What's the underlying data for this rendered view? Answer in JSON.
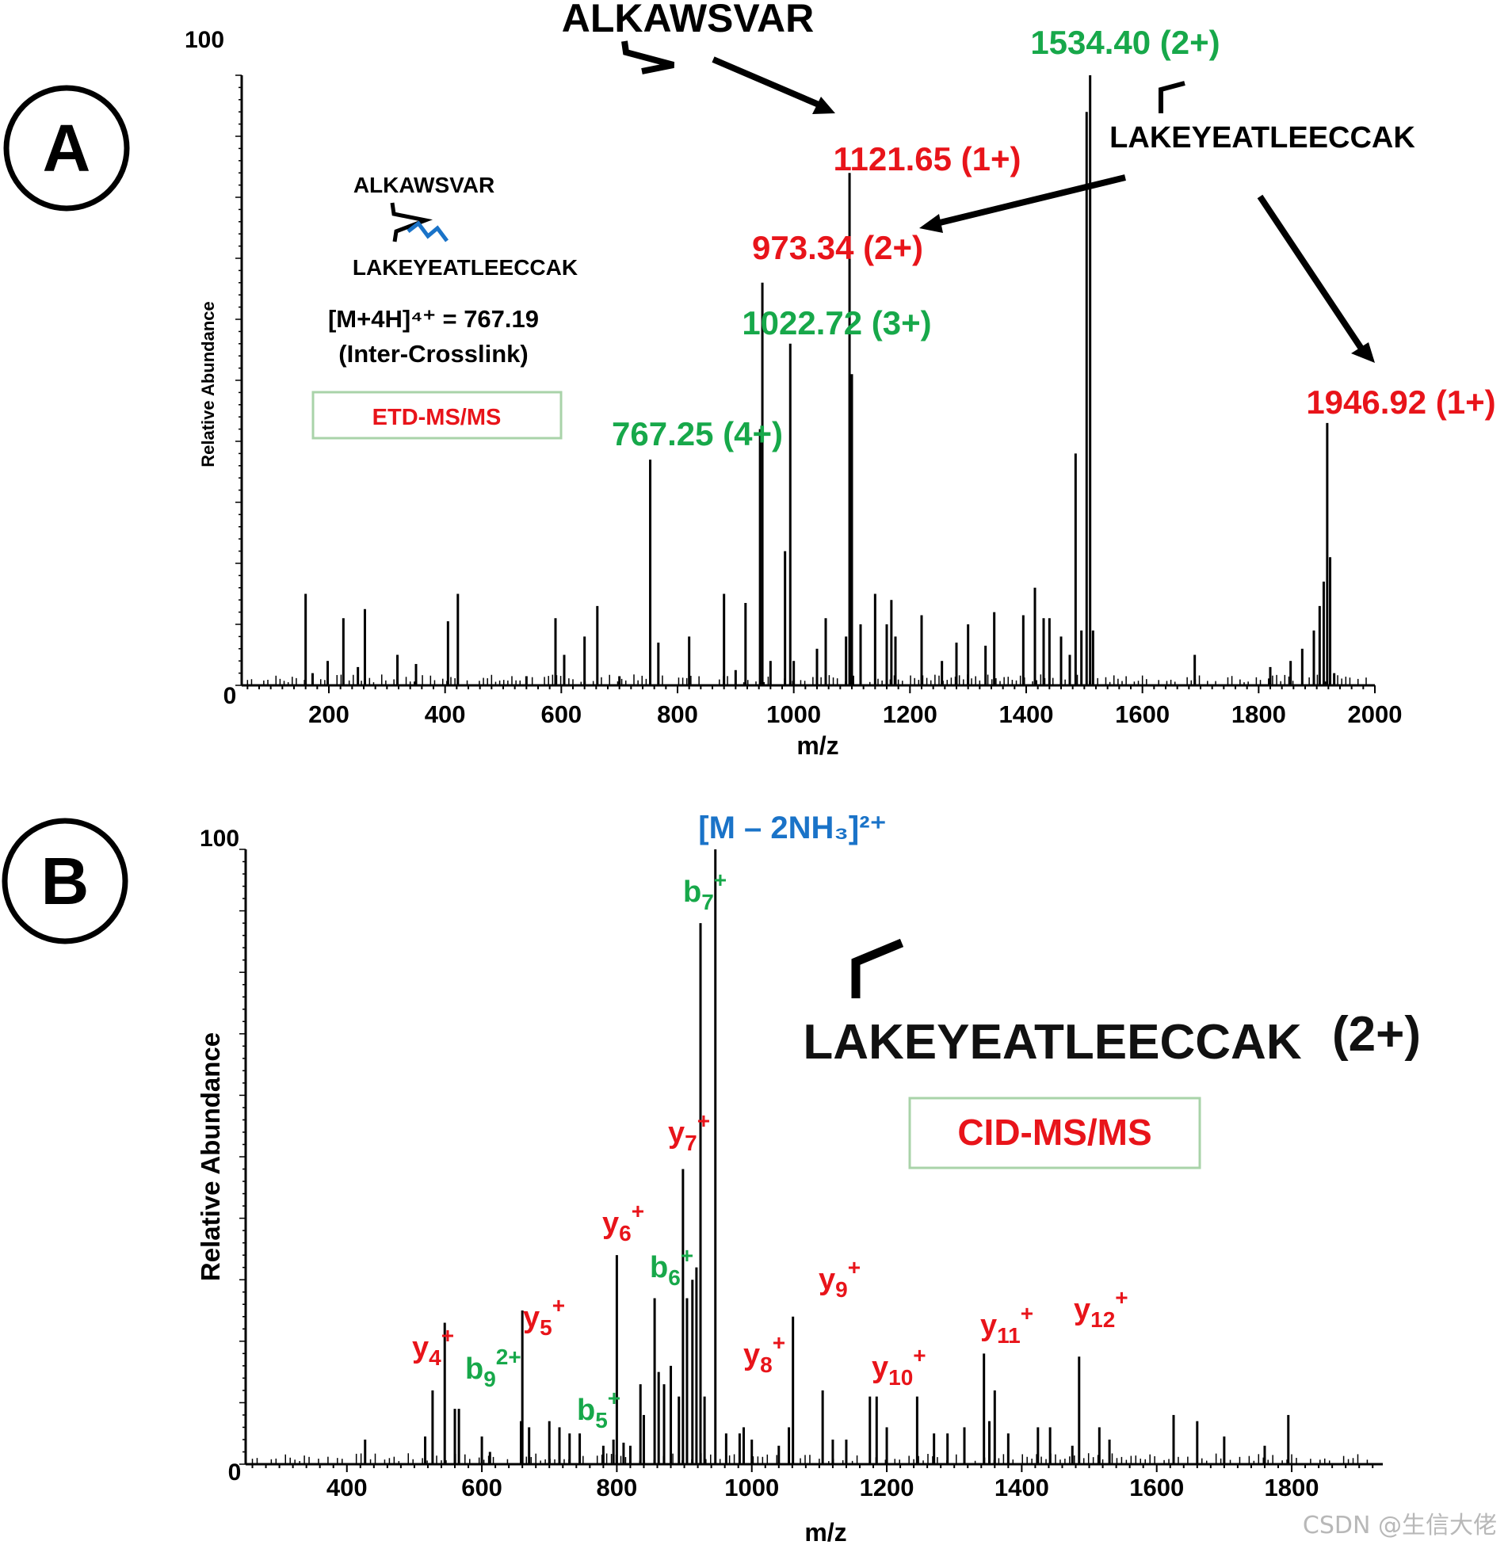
{
  "watermark": "CSDN @生信大佬",
  "colors": {
    "red": "#e8141a",
    "green": "#17a84a",
    "blue": "#1a73c8",
    "black": "#000000",
    "box_border": "#a9d3a9"
  },
  "chart_data": [
    {
      "panel_label": "A",
      "type": "bar",
      "subtype": "mass spectrum (stick plot)",
      "xlabel": "m/z",
      "ylabel": "Relative Abundance",
      "xlim": [
        50,
        2000
      ],
      "ylim": [
        0,
        100
      ],
      "x_ticks": [
        200,
        400,
        600,
        800,
        1000,
        1200,
        1400,
        1600,
        1800,
        2000
      ],
      "y_ticks": [
        0,
        100
      ],
      "method_box": "ETD-MS/MS",
      "precursor_line1": "[M+4H]⁴⁺ = 767.19",
      "precursor_line2": "(Inter-Crosslink)",
      "structure": {
        "peptide1": "ALKAWSVAR",
        "peptide2": "LAKEYEATLEECCAK"
      },
      "header_peptides": {
        "top": "ALKAWSVAR",
        "right": "LAKEYEATLEECCAK"
      },
      "peaks": [
        {
          "mz": 160,
          "ab": 15
        },
        {
          "mz": 172,
          "ab": 2
        },
        {
          "mz": 198,
          "ab": 4
        },
        {
          "mz": 225,
          "ab": 11
        },
        {
          "mz": 250,
          "ab": 3
        },
        {
          "mz": 262,
          "ab": 12.5
        },
        {
          "mz": 318,
          "ab": 5
        },
        {
          "mz": 350,
          "ab": 3.5
        },
        {
          "mz": 405,
          "ab": 10.5
        },
        {
          "mz": 422,
          "ab": 15
        },
        {
          "mz": 540,
          "ab": 1.5
        },
        {
          "mz": 590,
          "ab": 11
        },
        {
          "mz": 605,
          "ab": 5
        },
        {
          "mz": 640,
          "ab": 8
        },
        {
          "mz": 662,
          "ab": 13
        },
        {
          "mz": 700,
          "ab": 1.5
        },
        {
          "mz": 753,
          "ab": 37
        },
        {
          "mz": 767,
          "ab": 7
        },
        {
          "mz": 820,
          "ab": 8
        },
        {
          "mz": 880,
          "ab": 15
        },
        {
          "mz": 900,
          "ab": 2.5
        },
        {
          "mz": 917,
          "ab": 13.5
        },
        {
          "mz": 942,
          "ab": 42
        },
        {
          "mz": 946,
          "ab": 66
        },
        {
          "mz": 960,
          "ab": 4
        },
        {
          "mz": 985,
          "ab": 22
        },
        {
          "mz": 994,
          "ab": 56
        },
        {
          "mz": 1000,
          "ab": 4
        },
        {
          "mz": 1040,
          "ab": 6
        },
        {
          "mz": 1055,
          "ab": 11
        },
        {
          "mz": 1090,
          "ab": 8
        },
        {
          "mz": 1096,
          "ab": 84
        },
        {
          "mz": 1100,
          "ab": 51
        },
        {
          "mz": 1115,
          "ab": 10
        },
        {
          "mz": 1140,
          "ab": 15
        },
        {
          "mz": 1160,
          "ab": 10
        },
        {
          "mz": 1168,
          "ab": 14
        },
        {
          "mz": 1175,
          "ab": 8
        },
        {
          "mz": 1220,
          "ab": 11.5
        },
        {
          "mz": 1255,
          "ab": 4
        },
        {
          "mz": 1280,
          "ab": 7
        },
        {
          "mz": 1300,
          "ab": 10
        },
        {
          "mz": 1330,
          "ab": 6.5
        },
        {
          "mz": 1345,
          "ab": 12
        },
        {
          "mz": 1395,
          "ab": 11.5
        },
        {
          "mz": 1415,
          "ab": 16
        },
        {
          "mz": 1430,
          "ab": 11
        },
        {
          "mz": 1440,
          "ab": 11
        },
        {
          "mz": 1460,
          "ab": 8
        },
        {
          "mz": 1475,
          "ab": 5
        },
        {
          "mz": 1485,
          "ab": 38
        },
        {
          "mz": 1495,
          "ab": 9
        },
        {
          "mz": 1504,
          "ab": 94
        },
        {
          "mz": 1510,
          "ab": 100
        },
        {
          "mz": 1515,
          "ab": 9
        },
        {
          "mz": 1690,
          "ab": 5
        },
        {
          "mz": 1820,
          "ab": 3
        },
        {
          "mz": 1855,
          "ab": 4
        },
        {
          "mz": 1875,
          "ab": 6
        },
        {
          "mz": 1895,
          "ab": 9
        },
        {
          "mz": 1905,
          "ab": 13
        },
        {
          "mz": 1912,
          "ab": 17
        },
        {
          "mz": 1918,
          "ab": 43
        },
        {
          "mz": 1923,
          "ab": 21
        },
        {
          "mz": 1930,
          "ab": 2
        }
      ],
      "annotations": [
        {
          "text": "1534.40 (2+)",
          "color": "green"
        },
        {
          "text": "1121.65 (1+)",
          "color": "red"
        },
        {
          "text": "973.34 (2+)",
          "color": "red"
        },
        {
          "text": "1022.72 (3+)",
          "color": "green"
        },
        {
          "text": "767.25 (4+)",
          "color": "green"
        },
        {
          "text": "1946.92 (1+)",
          "color": "red"
        }
      ]
    },
    {
      "panel_label": "B",
      "type": "bar",
      "subtype": "mass spectrum (stick plot)",
      "xlabel": "m/z",
      "ylabel": "Relative Abundance",
      "xlim": [
        250,
        1935
      ],
      "ylim": [
        0,
        100
      ],
      "x_ticks": [
        400,
        600,
        800,
        1000,
        1200,
        1400,
        1600,
        1800
      ],
      "y_ticks": [
        0,
        100
      ],
      "method_box": "CID-MS/MS",
      "precursor_annotation": "[M – 2NH₃]²⁺",
      "peptide_label": "LAKEYEATLEECCAK",
      "peptide_charge": "(2+)",
      "peaks": [
        {
          "mz": 427,
          "ab": 4
        },
        {
          "mz": 516,
          "ab": 4.5
        },
        {
          "mz": 527,
          "ab": 12
        },
        {
          "mz": 545,
          "ab": 23
        },
        {
          "mz": 560,
          "ab": 9
        },
        {
          "mz": 566,
          "ab": 9
        },
        {
          "mz": 600,
          "ab": 4.5
        },
        {
          "mz": 612,
          "ab": 2
        },
        {
          "mz": 658,
          "ab": 7
        },
        {
          "mz": 660,
          "ab": 25
        },
        {
          "mz": 670,
          "ab": 6
        },
        {
          "mz": 700,
          "ab": 7
        },
        {
          "mz": 715,
          "ab": 6
        },
        {
          "mz": 730,
          "ab": 5
        },
        {
          "mz": 745,
          "ab": 5
        },
        {
          "mz": 780,
          "ab": 3
        },
        {
          "mz": 795,
          "ab": 4
        },
        {
          "mz": 800,
          "ab": 34
        },
        {
          "mz": 810,
          "ab": 3.5
        },
        {
          "mz": 820,
          "ab": 3
        },
        {
          "mz": 835,
          "ab": 13
        },
        {
          "mz": 840,
          "ab": 8
        },
        {
          "mz": 856,
          "ab": 27
        },
        {
          "mz": 862,
          "ab": 15
        },
        {
          "mz": 870,
          "ab": 13
        },
        {
          "mz": 880,
          "ab": 16
        },
        {
          "mz": 892,
          "ab": 11
        },
        {
          "mz": 898,
          "ab": 48
        },
        {
          "mz": 904,
          "ab": 27
        },
        {
          "mz": 912,
          "ab": 30
        },
        {
          "mz": 918,
          "ab": 32
        },
        {
          "mz": 924,
          "ab": 88
        },
        {
          "mz": 930,
          "ab": 11
        },
        {
          "mz": 946,
          "ab": 100
        },
        {
          "mz": 962,
          "ab": 5
        },
        {
          "mz": 982,
          "ab": 5
        },
        {
          "mz": 988,
          "ab": 6
        },
        {
          "mz": 1000,
          "ab": 4
        },
        {
          "mz": 1040,
          "ab": 3
        },
        {
          "mz": 1055,
          "ab": 6
        },
        {
          "mz": 1061,
          "ab": 24
        },
        {
          "mz": 1105,
          "ab": 12
        },
        {
          "mz": 1120,
          "ab": 4
        },
        {
          "mz": 1140,
          "ab": 4
        },
        {
          "mz": 1175,
          "ab": 11
        },
        {
          "mz": 1185,
          "ab": 11
        },
        {
          "mz": 1200,
          "ab": 6
        },
        {
          "mz": 1245,
          "ab": 11
        },
        {
          "mz": 1270,
          "ab": 5
        },
        {
          "mz": 1290,
          "ab": 5
        },
        {
          "mz": 1315,
          "ab": 6
        },
        {
          "mz": 1344,
          "ab": 18
        },
        {
          "mz": 1352,
          "ab": 7
        },
        {
          "mz": 1360,
          "ab": 12
        },
        {
          "mz": 1380,
          "ab": 5
        },
        {
          "mz": 1424,
          "ab": 6
        },
        {
          "mz": 1442,
          "ab": 6
        },
        {
          "mz": 1475,
          "ab": 3
        },
        {
          "mz": 1485,
          "ab": 17.5
        },
        {
          "mz": 1515,
          "ab": 6
        },
        {
          "mz": 1530,
          "ab": 4
        },
        {
          "mz": 1625,
          "ab": 8
        },
        {
          "mz": 1660,
          "ab": 7
        },
        {
          "mz": 1700,
          "ab": 4.5
        },
        {
          "mz": 1760,
          "ab": 3
        },
        {
          "mz": 1795,
          "ab": 8
        }
      ],
      "ion_labels": [
        {
          "ion": "b",
          "n": "7",
          "charge": "+",
          "color": "green"
        },
        {
          "ion": "y",
          "n": "7",
          "charge": "+",
          "color": "red"
        },
        {
          "ion": "y",
          "n": "6",
          "charge": "+",
          "color": "red"
        },
        {
          "ion": "b",
          "n": "6",
          "charge": "+",
          "color": "green"
        },
        {
          "ion": "y",
          "n": "5",
          "charge": "+",
          "color": "red"
        },
        {
          "ion": "y",
          "n": "4",
          "charge": "+",
          "color": "red"
        },
        {
          "ion": "b",
          "n": "9",
          "charge": "2+",
          "color": "green"
        },
        {
          "ion": "b",
          "n": "5",
          "charge": "+",
          "color": "green"
        },
        {
          "ion": "y",
          "n": "8",
          "charge": "+",
          "color": "red"
        },
        {
          "ion": "y",
          "n": "9",
          "charge": "+",
          "color": "red"
        },
        {
          "ion": "y",
          "n": "10",
          "charge": "+",
          "color": "red"
        },
        {
          "ion": "y",
          "n": "11",
          "charge": "+",
          "color": "red"
        },
        {
          "ion": "y",
          "n": "12",
          "charge": "+",
          "color": "red"
        }
      ]
    }
  ]
}
